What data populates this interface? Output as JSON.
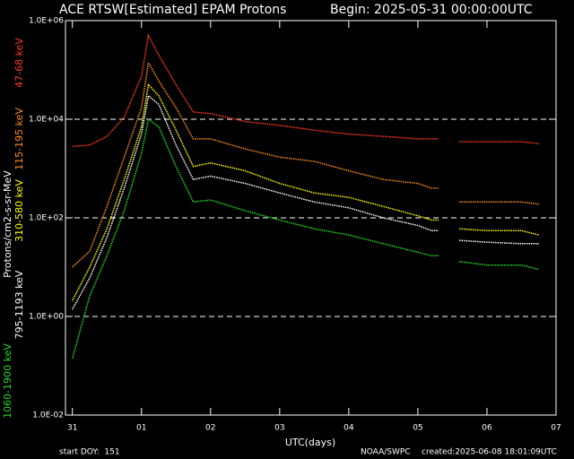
{
  "chart_data": {
    "type": "line",
    "title": "ACE RTSW[Estimated] EPAM Protons",
    "subtitle": "Begin: 2025-05-31 00:00:00UTC",
    "x_label": "UTC(days)",
    "y_label": "Protons/cm2-s-sr-MeV",
    "footer": {
      "start": "start DOY:  151",
      "source": "NOAA/SWPC",
      "created": "created:2025-06-08 18:01:09UTC"
    },
    "log_scale_y": true,
    "grid": true,
    "xlim": [
      -0.1,
      7.0
    ],
    "xticks": [
      {
        "value": 0,
        "label": "31"
      },
      {
        "value": 1,
        "label": "01"
      },
      {
        "value": 2,
        "label": "02"
      },
      {
        "value": 3,
        "label": "03"
      },
      {
        "value": 4,
        "label": "04"
      },
      {
        "value": 5,
        "label": "05"
      },
      {
        "value": 6,
        "label": "06"
      },
      {
        "value": 7,
        "label": "07"
      }
    ],
    "ylim": [
      0.01,
      1000000
    ],
    "yticks": [
      {
        "value": 0.01,
        "label": "1.0E-02"
      },
      {
        "value": 1,
        "label": "1.0E+00"
      },
      {
        "value": 100,
        "label": "1.0E+02"
      },
      {
        "value": 10000,
        "label": "1.0E+04"
      },
      {
        "value": 1000000,
        "label": "1.0E+06"
      }
    ],
    "x": [
      0,
      0.25,
      0.5,
      0.75,
      1.0,
      1.1,
      1.25,
      1.5,
      1.75,
      2.0,
      2.5,
      3.0,
      3.5,
      4.0,
      4.5,
      5.0,
      5.2,
      5.3,
      5.45,
      5.6,
      6.0,
      6.5,
      6.75
    ],
    "series": [
      {
        "name": "47-68 keV",
        "color": "#ff3c1e",
        "values": [
          2800,
          3000,
          4500,
          11000,
          74000,
          500000,
          200000,
          50000,
          14000,
          13000,
          9000,
          7500,
          6000,
          5000,
          4500,
          4000,
          4000,
          4000,
          null,
          3500,
          3500,
          3500,
          3200
        ]
      },
      {
        "name": "115-195 keV",
        "color": "#ff8c1a",
        "values": [
          10,
          21,
          170,
          1700,
          17000,
          140000,
          60000,
          17000,
          4000,
          4000,
          2500,
          1700,
          1400,
          900,
          600,
          500,
          400,
          400,
          null,
          210,
          210,
          210,
          190
        ]
      },
      {
        "name": "310-580 keV",
        "color": "#ffff00",
        "values": [
          2.1,
          10,
          60,
          600,
          7000,
          50000,
          30000,
          6000,
          1100,
          1300,
          900,
          500,
          320,
          260,
          170,
          110,
          90,
          90,
          null,
          60,
          55,
          55,
          45
        ]
      },
      {
        "name": "795-1193 keV",
        "color": "#ffffff",
        "values": [
          1.4,
          6,
          40,
          400,
          5000,
          30000,
          20000,
          3000,
          600,
          700,
          500,
          320,
          210,
          160,
          100,
          70,
          55,
          55,
          null,
          35,
          32,
          30,
          30
        ]
      },
      {
        "name": "1060-1900 keV",
        "color": "#22dd22",
        "values": [
          0.14,
          2.6,
          17,
          140,
          2000,
          10000,
          7000,
          1100,
          210,
          230,
          140,
          90,
          60,
          45,
          30,
          20,
          17,
          17,
          null,
          13,
          11,
          11,
          9
        ]
      }
    ]
  }
}
